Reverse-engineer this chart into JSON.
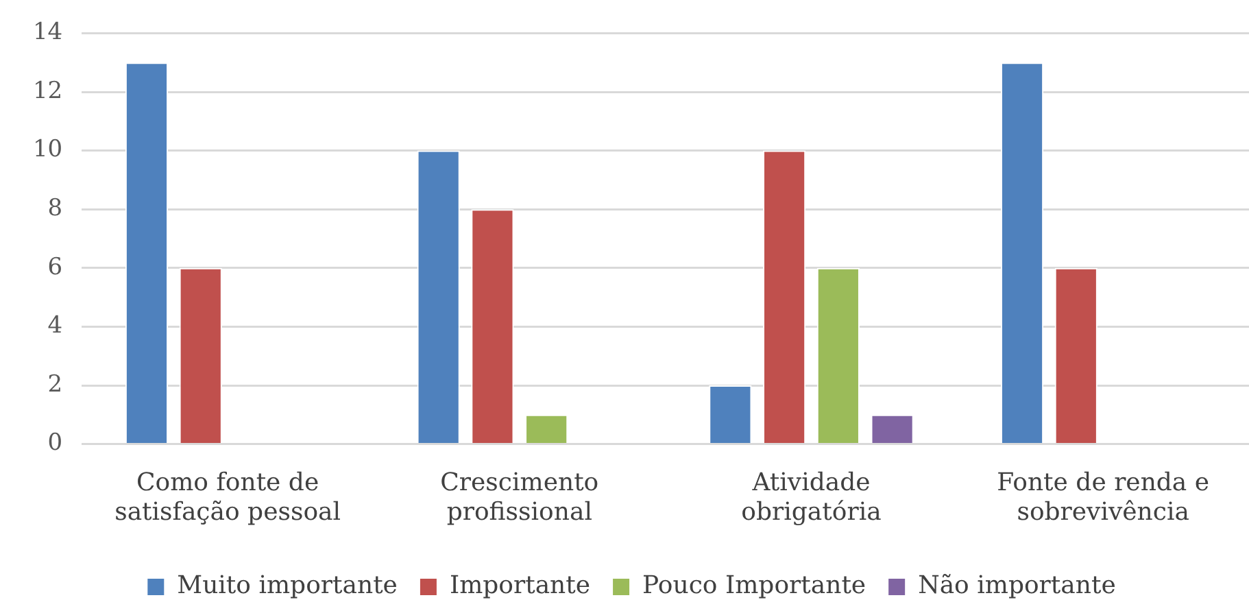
{
  "chart_data": {
    "type": "bar",
    "categories": [
      "Como fonte de satisfação pessoal",
      "Crescimento profissional",
      "Atividade obrigatória",
      "Fonte de renda e sobrevivência"
    ],
    "series": [
      {
        "name": "Muito importante",
        "color": "#4f81bd",
        "values": [
          13,
          10,
          2,
          13
        ]
      },
      {
        "name": "Importante",
        "color": "#c0504d",
        "values": [
          6,
          8,
          10,
          6
        ]
      },
      {
        "name": "Pouco Importante",
        "color": "#9bbb59",
        "values": [
          null,
          1,
          6,
          null
        ]
      },
      {
        "name": "Não importante",
        "color": "#8064a2",
        "values": [
          null,
          null,
          1,
          null
        ]
      }
    ],
    "ylim": [
      0,
      14
    ],
    "yticks": [
      0,
      2,
      4,
      6,
      8,
      10,
      12,
      14
    ],
    "grid": "y",
    "legend": "bottom"
  }
}
